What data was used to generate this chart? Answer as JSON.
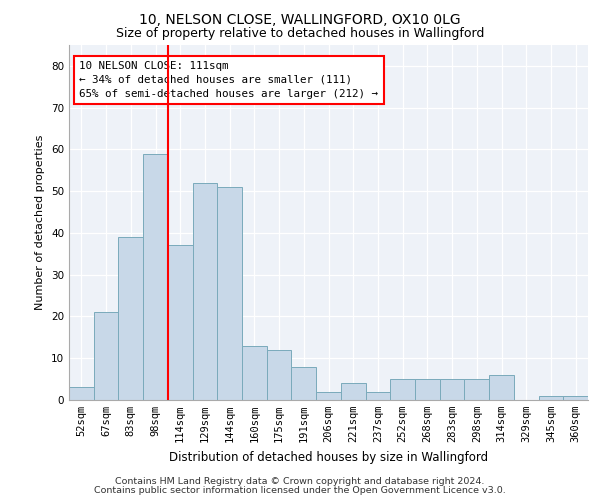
{
  "title1": "10, NELSON CLOSE, WALLINGFORD, OX10 0LG",
  "title2": "Size of property relative to detached houses in Wallingford",
  "xlabel": "Distribution of detached houses by size in Wallingford",
  "ylabel": "Number of detached properties",
  "categories": [
    "52sqm",
    "67sqm",
    "83sqm",
    "98sqm",
    "114sqm",
    "129sqm",
    "144sqm",
    "160sqm",
    "175sqm",
    "191sqm",
    "206sqm",
    "221sqm",
    "237sqm",
    "252sqm",
    "268sqm",
    "283sqm",
    "298sqm",
    "314sqm",
    "329sqm",
    "345sqm",
    "360sqm"
  ],
  "values": [
    3,
    21,
    39,
    59,
    37,
    52,
    51,
    13,
    12,
    8,
    2,
    4,
    2,
    5,
    5,
    5,
    5,
    6,
    0,
    1,
    1
  ],
  "bar_color": "#c8d8e8",
  "bar_edgecolor": "#7aaabb",
  "redline_x": 3.5,
  "annotation_line1": "10 NELSON CLOSE: 111sqm",
  "annotation_line2": "← 34% of detached houses are smaller (111)",
  "annotation_line3": "65% of semi-detached houses are larger (212) →",
  "ylim": [
    0,
    85
  ],
  "yticks": [
    0,
    10,
    20,
    30,
    40,
    50,
    60,
    70,
    80
  ],
  "footer1": "Contains HM Land Registry data © Crown copyright and database right 2024.",
  "footer2": "Contains public sector information licensed under the Open Government Licence v3.0.",
  "background_color": "#eef2f8",
  "grid_color": "#ffffff",
  "title1_fontsize": 10,
  "title2_fontsize": 9,
  "ylabel_fontsize": 8,
  "xlabel_fontsize": 8.5,
  "tick_fontsize": 7.5,
  "ann_fontsize": 7.8,
  "footer_fontsize": 6.8
}
